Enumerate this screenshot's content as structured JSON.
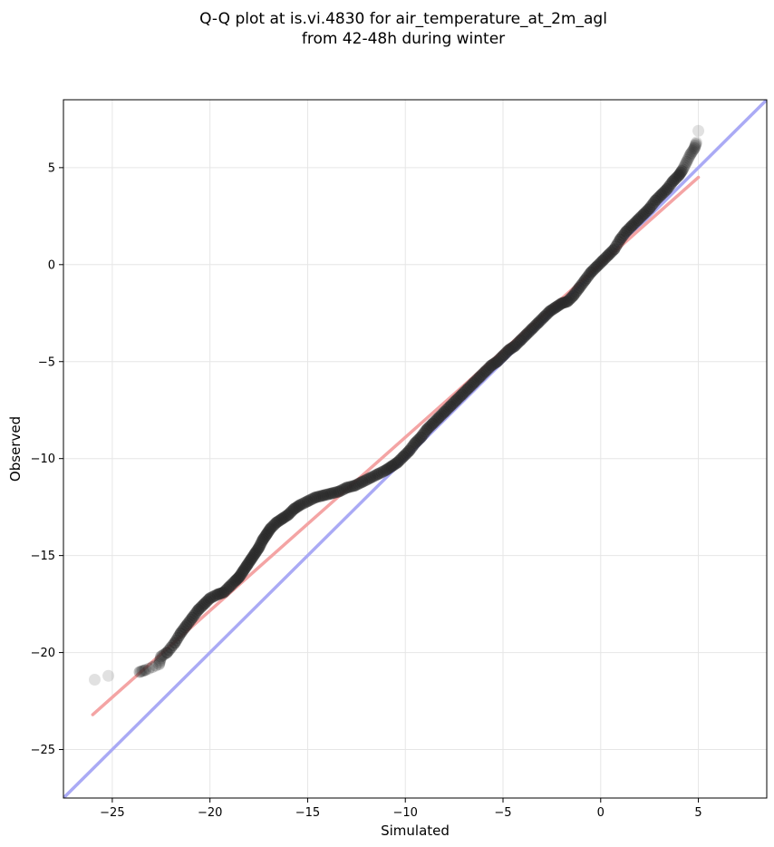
{
  "chart_data": {
    "type": "scatter",
    "title_lines": [
      "Q-Q plot at is.vi.4830 for air_temperature_at_2m_agl",
      "from 42-48h during winter"
    ],
    "xlabel": "Simulated",
    "ylabel": "Observed",
    "xlim": [
      -27.5,
      8.5
    ],
    "ylim": [
      -27.5,
      8.5
    ],
    "xticks": [
      -25,
      -20,
      -15,
      -10,
      -5,
      0,
      5
    ],
    "yticks": [
      -25,
      -20,
      -15,
      -10,
      -5,
      0,
      5
    ],
    "xtick_labels": [
      "−25",
      "−20",
      "−15",
      "−10",
      "−5",
      "0",
      "5"
    ],
    "ytick_labels": [
      "−25",
      "−20",
      "−15",
      "−10",
      "−5",
      "0",
      "5"
    ],
    "grid": true,
    "colors": {
      "points": "#2a2a2a",
      "points_light": "#cfcfcf",
      "reference_line": "#aaaaf5",
      "fit_line": "#f4a4a4",
      "grid": "#e6e6e6"
    },
    "reference_line": {
      "x": [
        -27.5,
        8.5
      ],
      "y": [
        -27.5,
        8.5
      ]
    },
    "fit_line": {
      "x": [
        -26.0,
        5.0
      ],
      "y": [
        -23.2,
        4.5
      ]
    },
    "quantile_points": [
      {
        "x": -25.9,
        "y": -21.4
      },
      {
        "x": -25.2,
        "y": -21.2
      },
      {
        "x": -23.6,
        "y": -21.0
      },
      {
        "x": -23.3,
        "y": -20.9
      },
      {
        "x": -22.6,
        "y": -20.6
      },
      {
        "x": -22.5,
        "y": -20.2
      },
      {
        "x": -22.2,
        "y": -20.0
      },
      {
        "x": -21.8,
        "y": -19.5
      },
      {
        "x": -21.5,
        "y": -19.0
      },
      {
        "x": -21.2,
        "y": -18.6
      },
      {
        "x": -20.9,
        "y": -18.2
      },
      {
        "x": -20.6,
        "y": -17.8
      },
      {
        "x": -20.3,
        "y": -17.5
      },
      {
        "x": -20.0,
        "y": -17.2
      },
      {
        "x": -19.6,
        "y": -17.0
      },
      {
        "x": -19.3,
        "y": -16.9
      },
      {
        "x": -19.0,
        "y": -16.6
      },
      {
        "x": -18.7,
        "y": -16.3
      },
      {
        "x": -18.5,
        "y": -16.1
      },
      {
        "x": -18.3,
        "y": -15.8
      },
      {
        "x": -18.1,
        "y": -15.5
      },
      {
        "x": -17.9,
        "y": -15.2
      },
      {
        "x": -17.7,
        "y": -14.9
      },
      {
        "x": -17.5,
        "y": -14.6
      },
      {
        "x": -17.3,
        "y": -14.2
      },
      {
        "x": -17.1,
        "y": -13.9
      },
      {
        "x": -16.9,
        "y": -13.6
      },
      {
        "x": -16.6,
        "y": -13.3
      },
      {
        "x": -16.3,
        "y": -13.1
      },
      {
        "x": -16.0,
        "y": -12.9
      },
      {
        "x": -15.7,
        "y": -12.6
      },
      {
        "x": -15.4,
        "y": -12.4
      },
      {
        "x": -15.0,
        "y": -12.2
      },
      {
        "x": -14.6,
        "y": -12.0
      },
      {
        "x": -14.2,
        "y": -11.9
      },
      {
        "x": -13.8,
        "y": -11.8
      },
      {
        "x": -13.4,
        "y": -11.7
      },
      {
        "x": -13.0,
        "y": -11.5
      },
      {
        "x": -12.6,
        "y": -11.4
      },
      {
        "x": -12.2,
        "y": -11.2
      },
      {
        "x": -11.8,
        "y": -11.0
      },
      {
        "x": -11.4,
        "y": -10.8
      },
      {
        "x": -11.0,
        "y": -10.6
      },
      {
        "x": -10.7,
        "y": -10.4
      },
      {
        "x": -10.4,
        "y": -10.2
      },
      {
        "x": -10.1,
        "y": -9.9
      },
      {
        "x": -9.8,
        "y": -9.6
      },
      {
        "x": -9.5,
        "y": -9.2
      },
      {
        "x": -9.2,
        "y": -8.9
      },
      {
        "x": -8.9,
        "y": -8.5
      },
      {
        "x": -8.6,
        "y": -8.2
      },
      {
        "x": -8.3,
        "y": -7.9
      },
      {
        "x": -8.0,
        "y": -7.6
      },
      {
        "x": -7.7,
        "y": -7.3
      },
      {
        "x": -7.4,
        "y": -7.0
      },
      {
        "x": -7.1,
        "y": -6.7
      },
      {
        "x": -6.8,
        "y": -6.4
      },
      {
        "x": -6.5,
        "y": -6.1
      },
      {
        "x": -6.2,
        "y": -5.8
      },
      {
        "x": -5.9,
        "y": -5.5
      },
      {
        "x": -5.6,
        "y": -5.2
      },
      {
        "x": -5.3,
        "y": -5.0
      },
      {
        "x": -5.0,
        "y": -4.7
      },
      {
        "x": -4.7,
        "y": -4.4
      },
      {
        "x": -4.4,
        "y": -4.2
      },
      {
        "x": -4.1,
        "y": -3.9
      },
      {
        "x": -3.8,
        "y": -3.6
      },
      {
        "x": -3.5,
        "y": -3.3
      },
      {
        "x": -3.2,
        "y": -3.0
      },
      {
        "x": -2.9,
        "y": -2.7
      },
      {
        "x": -2.6,
        "y": -2.4
      },
      {
        "x": -2.3,
        "y": -2.2
      },
      {
        "x": -2.0,
        "y": -2.0
      },
      {
        "x": -1.7,
        "y": -1.9
      },
      {
        "x": -1.4,
        "y": -1.6
      },
      {
        "x": -1.1,
        "y": -1.2
      },
      {
        "x": -0.8,
        "y": -0.8
      },
      {
        "x": -0.5,
        "y": -0.4
      },
      {
        "x": -0.2,
        "y": -0.1
      },
      {
        "x": 0.1,
        "y": 0.2
      },
      {
        "x": 0.4,
        "y": 0.5
      },
      {
        "x": 0.7,
        "y": 0.8
      },
      {
        "x": 1.0,
        "y": 1.3
      },
      {
        "x": 1.3,
        "y": 1.7
      },
      {
        "x": 1.6,
        "y": 2.0
      },
      {
        "x": 1.9,
        "y": 2.3
      },
      {
        "x": 2.2,
        "y": 2.6
      },
      {
        "x": 2.5,
        "y": 2.9
      },
      {
        "x": 2.8,
        "y": 3.3
      },
      {
        "x": 3.1,
        "y": 3.6
      },
      {
        "x": 3.4,
        "y": 3.9
      },
      {
        "x": 3.7,
        "y": 4.3
      },
      {
        "x": 4.0,
        "y": 4.6
      },
      {
        "x": 4.2,
        "y": 4.9
      },
      {
        "x": 4.4,
        "y": 5.3
      },
      {
        "x": 4.6,
        "y": 5.7
      },
      {
        "x": 4.8,
        "y": 6.0
      },
      {
        "x": 4.9,
        "y": 6.3
      },
      {
        "x": 5.0,
        "y": 6.9
      }
    ]
  }
}
